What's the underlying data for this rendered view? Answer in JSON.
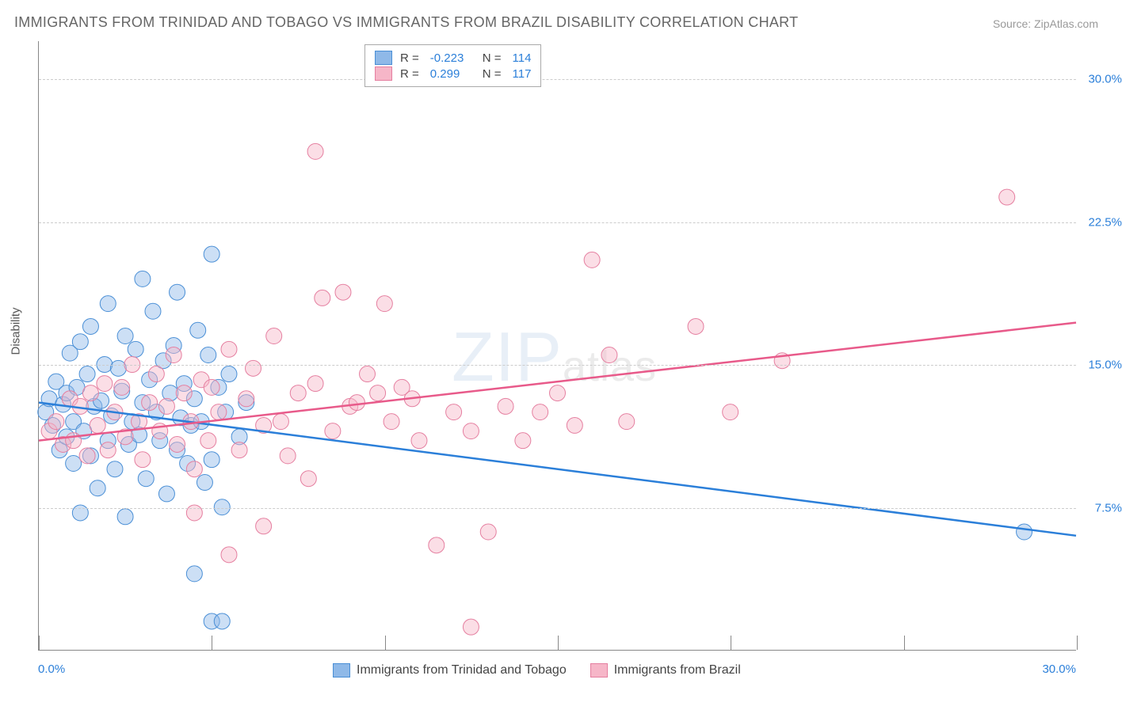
{
  "title": "IMMIGRANTS FROM TRINIDAD AND TOBAGO VS IMMIGRANTS FROM BRAZIL DISABILITY CORRELATION CHART",
  "source": "Source: ZipAtlas.com",
  "ylabel": "Disability",
  "watermark_main": "ZIP",
  "watermark_sub": "atlas",
  "chart": {
    "type": "scatter",
    "xlim": [
      0,
      30
    ],
    "ylim": [
      0,
      32
    ],
    "yticks": [
      7.5,
      15.0,
      22.5,
      30.0
    ],
    "ytick_labels": [
      "7.5%",
      "15.0%",
      "22.5%",
      "30.0%"
    ],
    "xtick_positions": [
      0,
      5,
      10,
      15,
      20,
      25,
      30
    ],
    "x_start_label": "0.0%",
    "x_end_label": "30.0%",
    "grid_color": "#cccccc",
    "axis_color": "#888888",
    "background_color": "#ffffff",
    "marker_radius": 10,
    "marker_opacity": 0.45,
    "series": [
      {
        "name": "Immigrants from Trinidad and Tobago",
        "color_fill": "#8fb9e8",
        "color_stroke": "#4a8fd6",
        "line_color": "#2b7fd9",
        "R": "-0.223",
        "N": "114",
        "trend": {
          "x1": 0,
          "y1": 13.0,
          "x2": 30,
          "y2": 6.0
        },
        "points": [
          [
            0.2,
            12.5
          ],
          [
            0.3,
            13.2
          ],
          [
            0.4,
            11.8
          ],
          [
            0.5,
            14.1
          ],
          [
            0.6,
            10.5
          ],
          [
            0.7,
            12.9
          ],
          [
            0.8,
            13.5
          ],
          [
            0.8,
            11.2
          ],
          [
            0.9,
            15.6
          ],
          [
            1.0,
            12.0
          ],
          [
            1.0,
            9.8
          ],
          [
            1.1,
            13.8
          ],
          [
            1.2,
            16.2
          ],
          [
            1.3,
            11.5
          ],
          [
            1.4,
            14.5
          ],
          [
            1.5,
            10.2
          ],
          [
            1.5,
            17.0
          ],
          [
            1.6,
            12.8
          ],
          [
            1.7,
            8.5
          ],
          [
            1.8,
            13.1
          ],
          [
            1.9,
            15.0
          ],
          [
            2.0,
            11.0
          ],
          [
            2.0,
            18.2
          ],
          [
            2.1,
            12.3
          ],
          [
            2.2,
            9.5
          ],
          [
            2.3,
            14.8
          ],
          [
            2.4,
            13.6
          ],
          [
            2.5,
            16.5
          ],
          [
            2.6,
            10.8
          ],
          [
            2.7,
            12.0
          ],
          [
            2.8,
            15.8
          ],
          [
            2.9,
            11.3
          ],
          [
            3.0,
            13.0
          ],
          [
            3.0,
            19.5
          ],
          [
            3.1,
            9.0
          ],
          [
            3.2,
            14.2
          ],
          [
            3.3,
            17.8
          ],
          [
            3.4,
            12.5
          ],
          [
            3.5,
            11.0
          ],
          [
            3.6,
            15.2
          ],
          [
            3.7,
            8.2
          ],
          [
            3.8,
            13.5
          ],
          [
            3.9,
            16.0
          ],
          [
            4.0,
            10.5
          ],
          [
            4.0,
            18.8
          ],
          [
            4.1,
            12.2
          ],
          [
            4.2,
            14.0
          ],
          [
            4.3,
            9.8
          ],
          [
            4.4,
            11.8
          ],
          [
            4.5,
            13.2
          ],
          [
            4.6,
            16.8
          ],
          [
            4.7,
            12.0
          ],
          [
            4.8,
            8.8
          ],
          [
            4.9,
            15.5
          ],
          [
            5.0,
            20.8
          ],
          [
            5.0,
            10.0
          ],
          [
            5.2,
            13.8
          ],
          [
            5.3,
            7.5
          ],
          [
            5.4,
            12.5
          ],
          [
            5.5,
            14.5
          ],
          [
            5.8,
            11.2
          ],
          [
            6.0,
            13.0
          ],
          [
            1.2,
            7.2
          ],
          [
            2.5,
            7.0
          ],
          [
            4.5,
            4.0
          ],
          [
            5.0,
            1.5
          ],
          [
            5.3,
            1.5
          ],
          [
            28.5,
            6.2
          ]
        ]
      },
      {
        "name": "Immigrants from Brazil",
        "color_fill": "#f6b6c8",
        "color_stroke": "#e57fa0",
        "line_color": "#e85a8a",
        "R": "0.299",
        "N": "117",
        "trend": {
          "x1": 0,
          "y1": 11.0,
          "x2": 30,
          "y2": 17.2
        },
        "points": [
          [
            0.3,
            11.5
          ],
          [
            0.5,
            12.0
          ],
          [
            0.7,
            10.8
          ],
          [
            0.9,
            13.2
          ],
          [
            1.0,
            11.0
          ],
          [
            1.2,
            12.8
          ],
          [
            1.4,
            10.2
          ],
          [
            1.5,
            13.5
          ],
          [
            1.7,
            11.8
          ],
          [
            1.9,
            14.0
          ],
          [
            2.0,
            10.5
          ],
          [
            2.2,
            12.5
          ],
          [
            2.4,
            13.8
          ],
          [
            2.5,
            11.2
          ],
          [
            2.7,
            15.0
          ],
          [
            2.9,
            12.0
          ],
          [
            3.0,
            10.0
          ],
          [
            3.2,
            13.0
          ],
          [
            3.4,
            14.5
          ],
          [
            3.5,
            11.5
          ],
          [
            3.7,
            12.8
          ],
          [
            3.9,
            15.5
          ],
          [
            4.0,
            10.8
          ],
          [
            4.2,
            13.5
          ],
          [
            4.4,
            12.0
          ],
          [
            4.5,
            9.5
          ],
          [
            4.7,
            14.2
          ],
          [
            4.9,
            11.0
          ],
          [
            5.0,
            13.8
          ],
          [
            5.2,
            12.5
          ],
          [
            5.5,
            15.8
          ],
          [
            5.8,
            10.5
          ],
          [
            6.0,
            13.2
          ],
          [
            6.2,
            14.8
          ],
          [
            6.5,
            11.8
          ],
          [
            6.8,
            16.5
          ],
          [
            7.0,
            12.0
          ],
          [
            7.2,
            10.2
          ],
          [
            7.5,
            13.5
          ],
          [
            7.8,
            9.0
          ],
          [
            8.0,
            14.0
          ],
          [
            8.2,
            18.5
          ],
          [
            8.5,
            11.5
          ],
          [
            8.8,
            18.8
          ],
          [
            9.0,
            12.8
          ],
          [
            9.2,
            13.0
          ],
          [
            9.5,
            14.5
          ],
          [
            9.8,
            13.5
          ],
          [
            10.0,
            18.2
          ],
          [
            10.2,
            12.0
          ],
          [
            10.5,
            13.8
          ],
          [
            10.8,
            13.2
          ],
          [
            11.0,
            11.0
          ],
          [
            11.5,
            5.5
          ],
          [
            12.0,
            12.5
          ],
          [
            12.5,
            11.5
          ],
          [
            13.0,
            6.2
          ],
          [
            13.5,
            12.8
          ],
          [
            14.0,
            11.0
          ],
          [
            14.5,
            12.5
          ],
          [
            15.0,
            13.5
          ],
          [
            15.5,
            11.8
          ],
          [
            16.0,
            20.5
          ],
          [
            16.5,
            15.5
          ],
          [
            17.0,
            12.0
          ],
          [
            19.0,
            17.0
          ],
          [
            20.0,
            12.5
          ],
          [
            21.5,
            15.2
          ],
          [
            28.0,
            23.8
          ],
          [
            8.0,
            26.2
          ],
          [
            4.5,
            7.2
          ],
          [
            5.5,
            5.0
          ],
          [
            6.5,
            6.5
          ],
          [
            12.5,
            1.2
          ]
        ]
      }
    ]
  },
  "top_legend": {
    "rows": [
      {
        "swatch_fill": "#8fb9e8",
        "swatch_stroke": "#4a8fd6",
        "r_label": "R =",
        "r_val": "-0.223",
        "n_label": "N =",
        "n_val": "114"
      },
      {
        "swatch_fill": "#f6b6c8",
        "swatch_stroke": "#e57fa0",
        "r_label": "R =",
        "r_val": "0.299",
        "n_label": "N =",
        "n_val": "117"
      }
    ]
  },
  "bottom_legend": {
    "items": [
      {
        "swatch_fill": "#8fb9e8",
        "swatch_stroke": "#4a8fd6",
        "label": "Immigrants from Trinidad and Tobago"
      },
      {
        "swatch_fill": "#f6b6c8",
        "swatch_stroke": "#e57fa0",
        "label": "Immigrants from Brazil"
      }
    ]
  }
}
